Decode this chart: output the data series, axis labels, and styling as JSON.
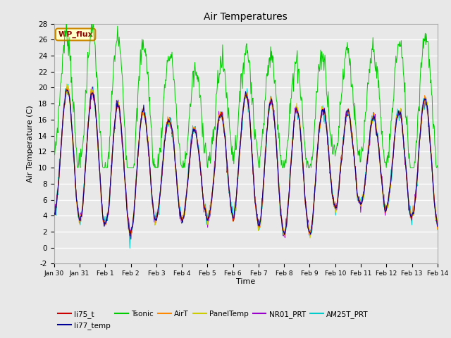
{
  "title": "Air Temperatures",
  "xlabel": "Time",
  "ylabel": "Air Temperature (C)",
  "ylim": [
    -2,
    28
  ],
  "yticks": [
    -2,
    0,
    2,
    4,
    6,
    8,
    10,
    12,
    14,
    16,
    18,
    20,
    22,
    24,
    26,
    28
  ],
  "x_tick_labels": [
    "Jan 30",
    "Jan 31",
    "Feb 1",
    "Feb 2",
    "Feb 3",
    "Feb 4",
    "Feb 5",
    "Feb 6",
    "Feb 7",
    "Feb 8",
    "Feb 9",
    "Feb 10",
    "Feb 11",
    "Feb 12",
    "Feb 13",
    "Feb 14"
  ],
  "series_colors": {
    "li75_t": "#cc0000",
    "li77_temp": "#000099",
    "Tsonic": "#00cc00",
    "AirT": "#ff8800",
    "PanelTemp": "#cccc00",
    "NR01_PRT": "#9900cc",
    "AM25T_PRT": "#00cccc"
  },
  "legend_label": "WP_flux",
  "background_color": "#e8e8e8",
  "grid_color": "#ffffff",
  "figsize": [
    6.4,
    4.8
  ],
  "dpi": 100
}
